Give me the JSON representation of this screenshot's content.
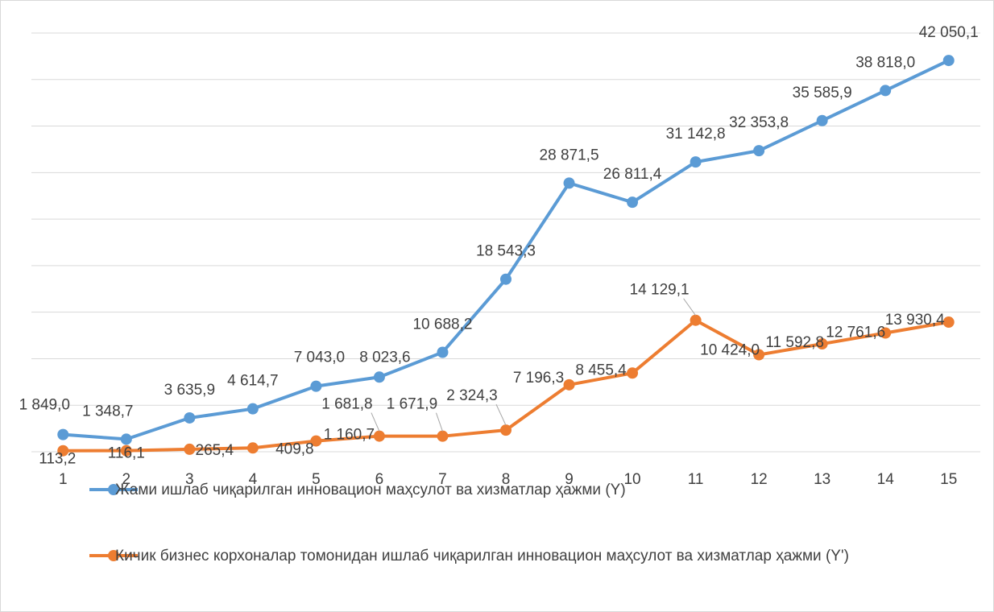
{
  "chart_data": {
    "type": "line",
    "categories": [
      "1",
      "2",
      "3",
      "4",
      "5",
      "6",
      "7",
      "8",
      "9",
      "10",
      "11",
      "12",
      "13",
      "14",
      "15"
    ],
    "series": [
      {
        "name": "Жами ишлаб чиқарилган инновацион маҳсулот ва хизматлар ҳажми (Y)",
        "color": "#5b9bd5",
        "values": [
          1849.0,
          1348.7,
          3635.9,
          4614.7,
          7043.0,
          8023.6,
          10688.2,
          18543.3,
          28871.5,
          26811.4,
          31142.8,
          32353.8,
          35585.9,
          38818.0,
          42050.1
        ],
        "value_labels": [
          "1 849,0",
          "1 348,7",
          "3 635,9",
          "4 614,7",
          "7 043,0",
          "8 023,6",
          "10 688,2",
          "18 543,3",
          "28 871,5",
          "26 811,4",
          "31 142,8",
          "32 353,8",
          "35 585,9",
          "38 818,0",
          "42 050,1"
        ]
      },
      {
        "name": "Кичик бизнес корхоналар томонидан ишлаб чиқарилган инновацион маҳсулот ва хизматлар ҳажми (Y')",
        "color": "#ed7d31",
        "values": [
          113.2,
          116.1,
          265.4,
          409.8,
          1160.7,
          1681.8,
          1671.9,
          2324.3,
          7196.3,
          8455.4,
          14129.1,
          10424.0,
          11592.8,
          12761.6,
          13930.4
        ],
        "value_labels": [
          "113,2",
          "116,1",
          "265,4",
          "409,8",
          "1 160,7",
          "1 681,8",
          "1 671,9",
          "2 324,3",
          "7 196,3",
          "8 455,4",
          "14 129,1",
          "10 424,0",
          "11 592,8",
          "12 761,6",
          "13 930,4"
        ]
      }
    ],
    "ylim": [
      0,
      45000
    ],
    "yticks": [
      0,
      5000,
      10000,
      15000,
      20000,
      25000,
      30000,
      35000,
      40000,
      45000
    ],
    "grid": true,
    "legend": "bottom"
  }
}
